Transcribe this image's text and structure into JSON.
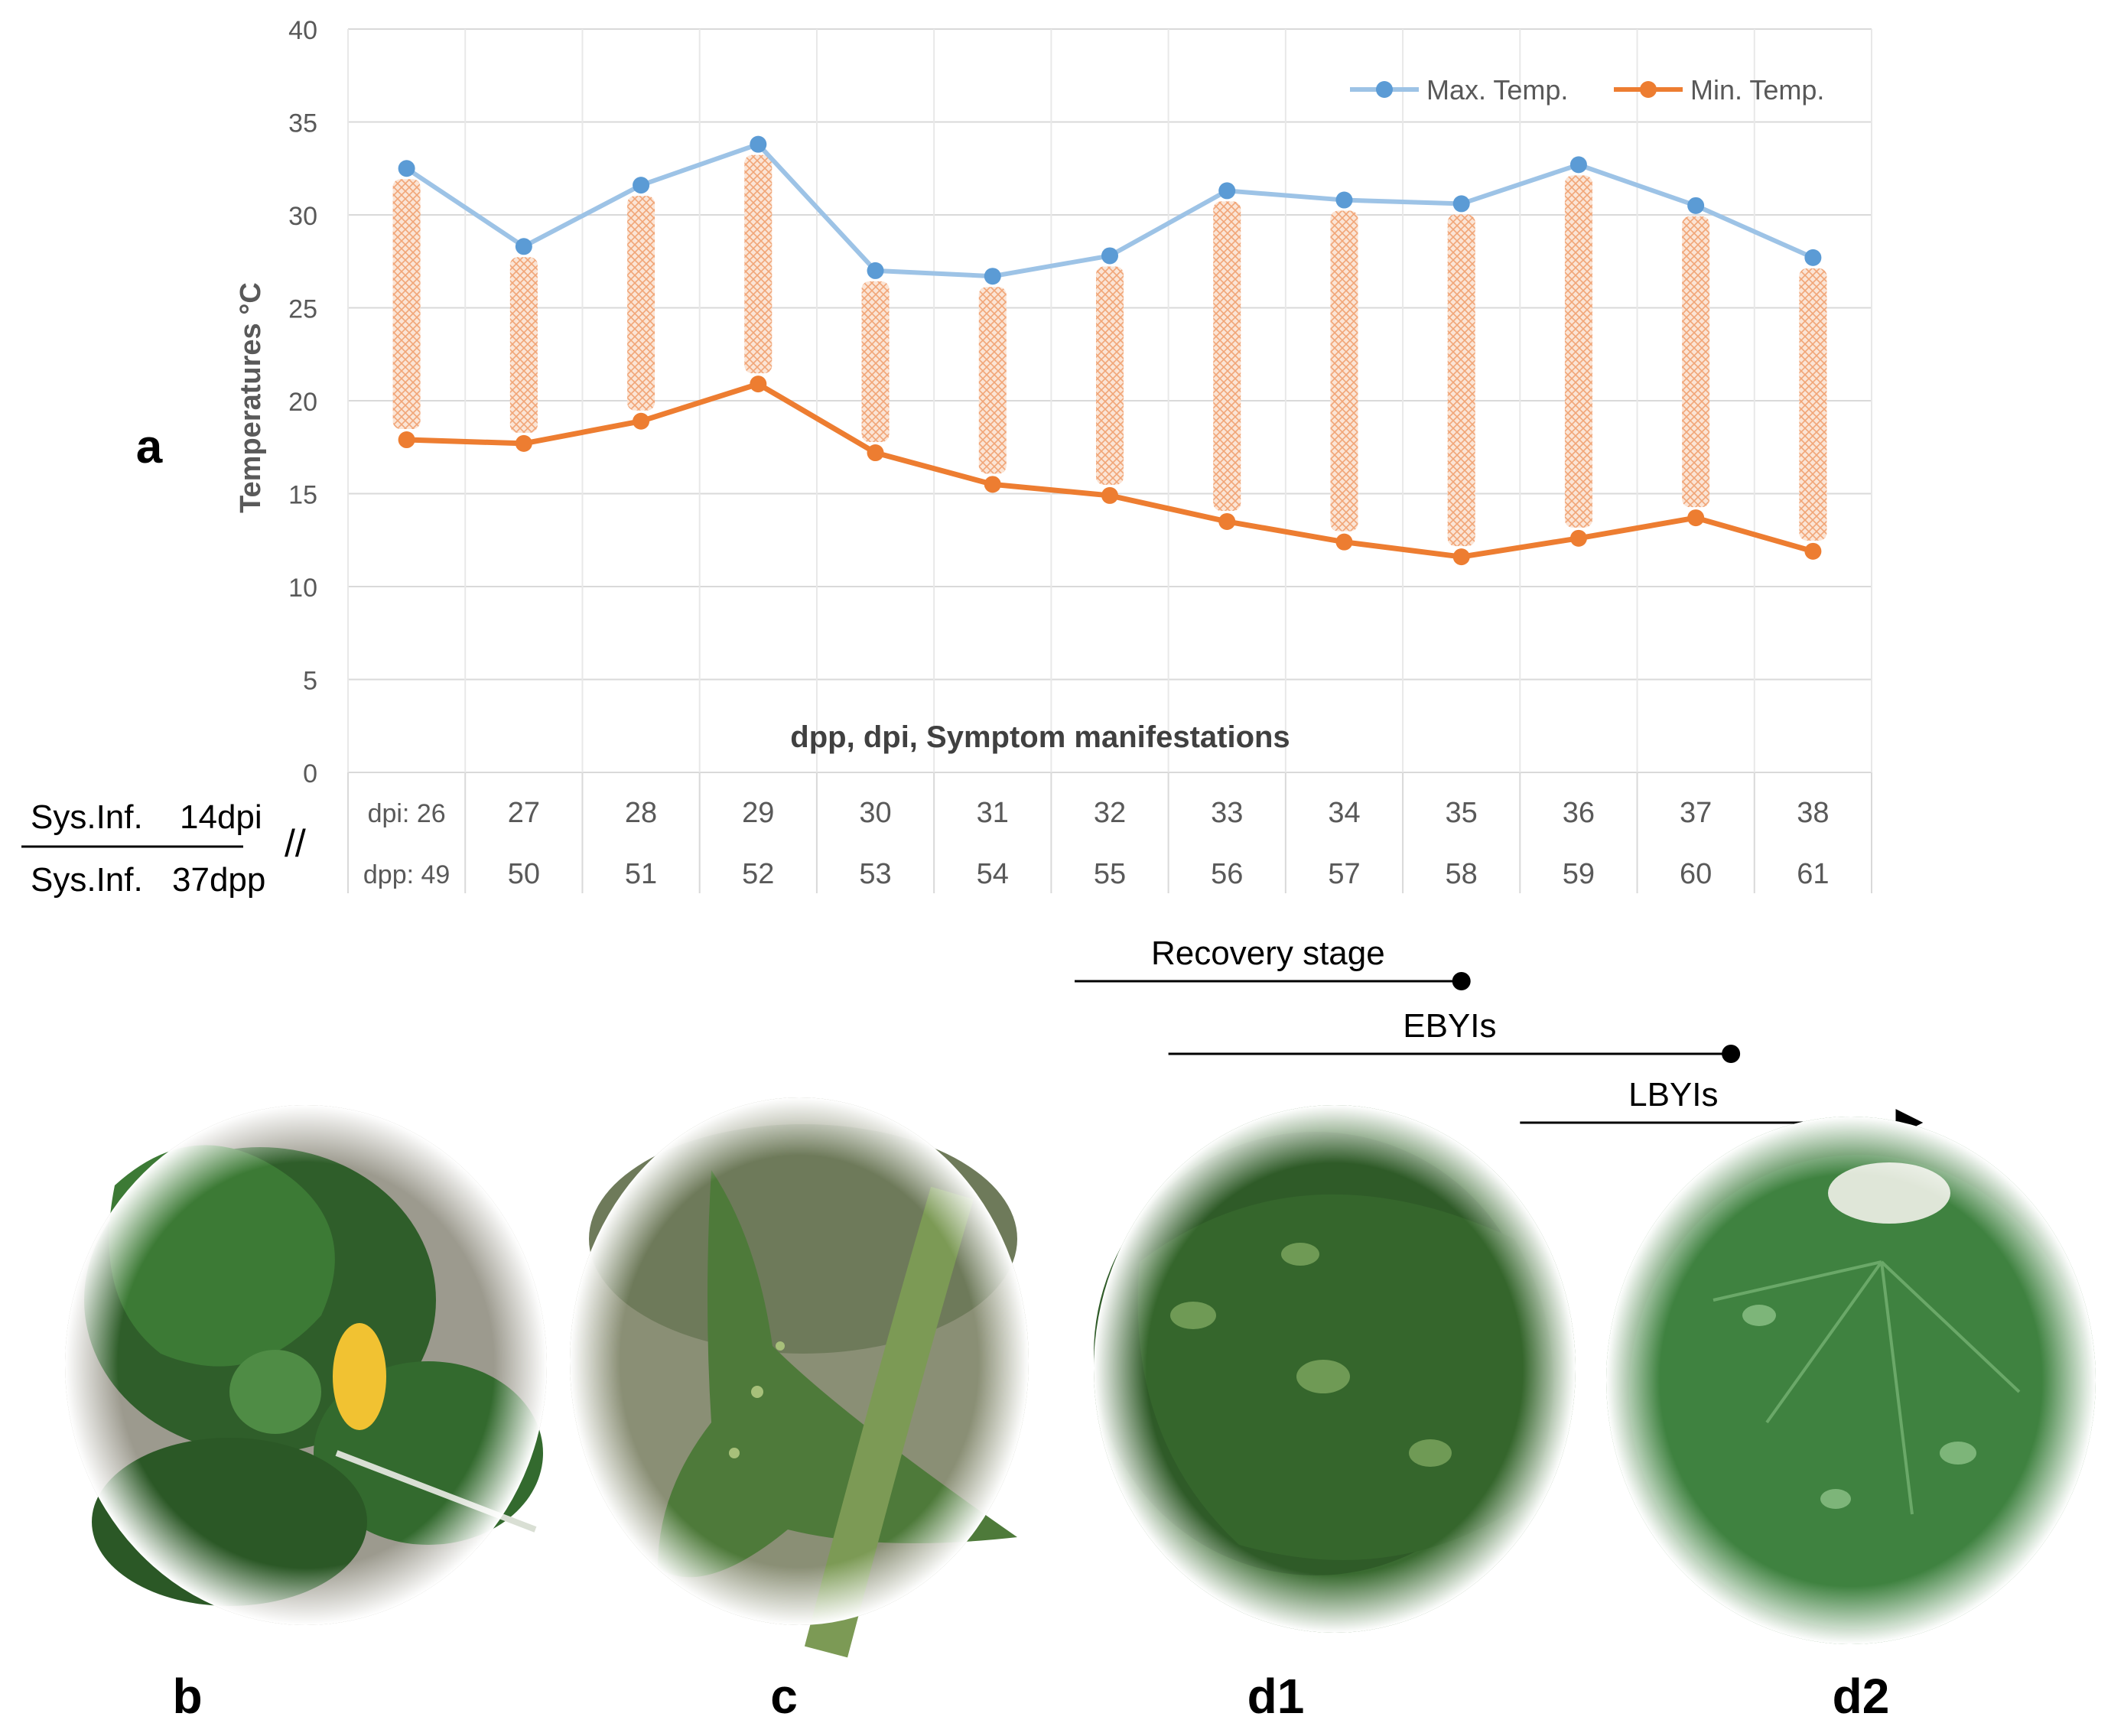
{
  "panel_labels": {
    "a": "a",
    "b": "b",
    "c": "c",
    "d1": "d1",
    "d2": "d2"
  },
  "chart_data": {
    "type": "line",
    "ylabel": "Temperatures °C",
    "xlabel": "dpp, dpi, Symptom manifestations",
    "ylim": [
      0,
      40
    ],
    "yticks": [
      0,
      5,
      10,
      15,
      20,
      25,
      30,
      35,
      40
    ],
    "grid": true,
    "legend_position": "top-right",
    "categories_dpi": [
      "dpi: 26",
      "27",
      "28",
      "29",
      "30",
      "31",
      "32",
      "33",
      "34",
      "35",
      "36",
      "37",
      "38"
    ],
    "categories_dpp": [
      "dpp: 49",
      "50",
      "51",
      "52",
      "53",
      "54",
      "55",
      "56",
      "57",
      "58",
      "59",
      "60",
      "61"
    ],
    "series": [
      {
        "name": "Max. Temp.",
        "color": "#9dc3e6",
        "marker_color": "#5b9bd5",
        "values": [
          32.5,
          28.3,
          31.6,
          33.8,
          27.0,
          26.7,
          27.8,
          31.3,
          30.8,
          30.6,
          32.7,
          30.5,
          27.7
        ]
      },
      {
        "name": "Min. Temp.",
        "color": "#ed7d31",
        "marker_color": "#ed7d31",
        "values": [
          17.9,
          17.7,
          18.9,
          20.9,
          17.2,
          15.5,
          14.9,
          13.5,
          12.4,
          11.6,
          12.6,
          13.7,
          11.9
        ]
      }
    ],
    "range_bar_color": "#f4b183"
  },
  "left_labels": {
    "top_label": "Sys.Inf.",
    "top_value": "14dpi",
    "bottom_label": "Sys.Inf.",
    "bottom_value": "37dpp",
    "break_mark": "//"
  },
  "stages": [
    {
      "label": "Recovery stage",
      "start_index": 5.7,
      "end_index": 9.0,
      "end": "dot"
    },
    {
      "label": "EBYIs",
      "start_index": 6.5,
      "end_index": 11.3,
      "end": "dot"
    },
    {
      "label": "LBYIs",
      "start_index": 9.5,
      "end_index": 12.9,
      "end": "arrow"
    }
  ]
}
